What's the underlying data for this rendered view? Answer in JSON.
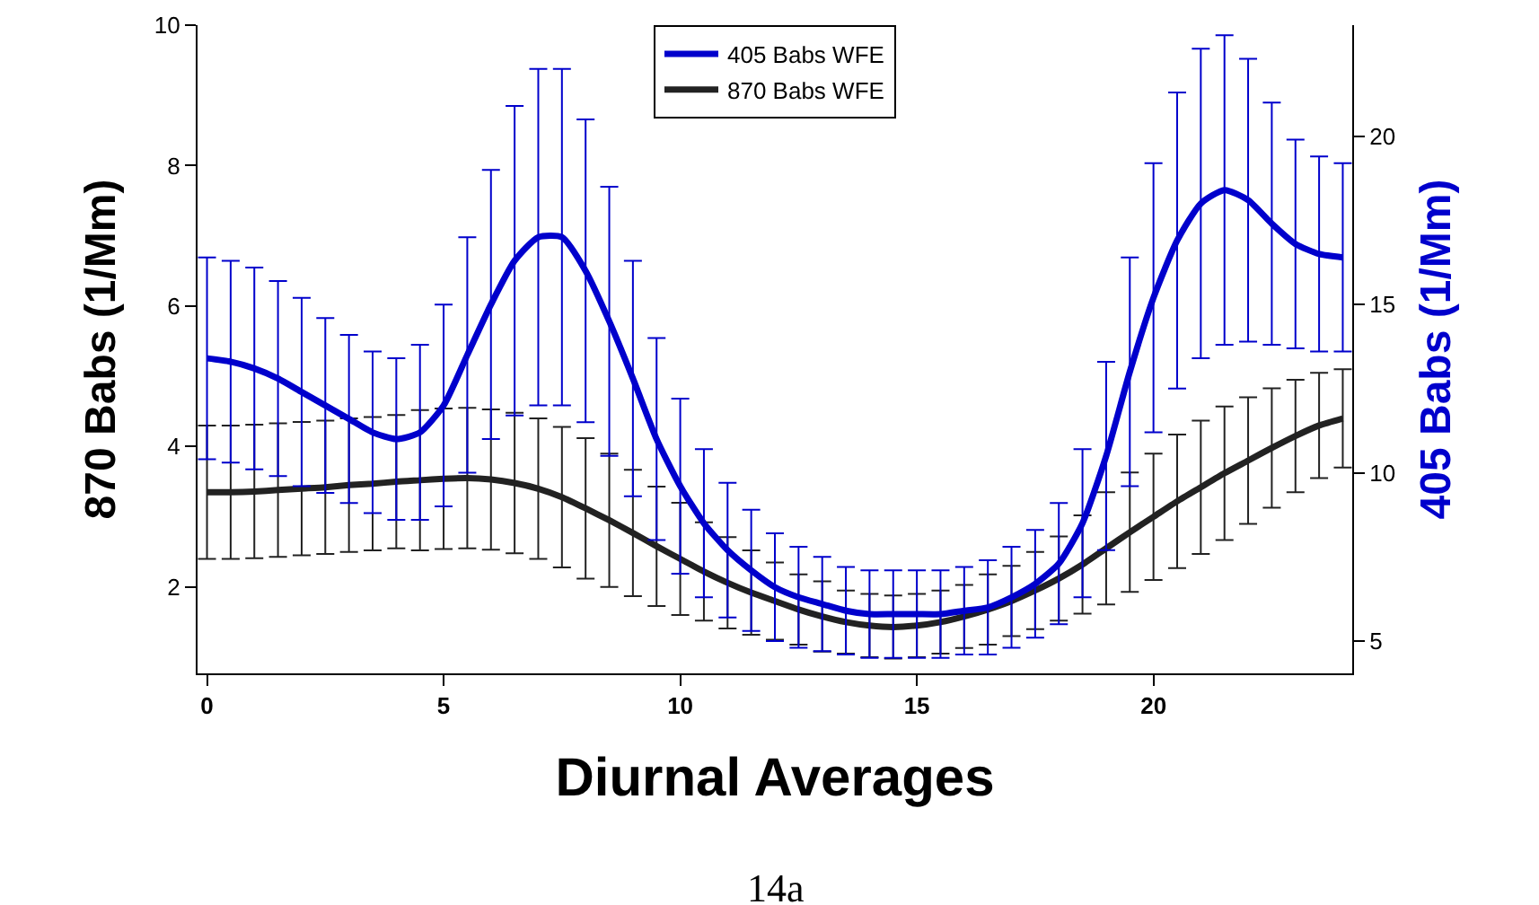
{
  "chart_data": {
    "type": "line",
    "xlabel": "Diurnal Averages",
    "ylabel": "870 Babs (1/Mm)",
    "y2label": "405 Babs (1/Mm)",
    "x": [
      0,
      0.5,
      1,
      1.5,
      2,
      2.5,
      3,
      3.5,
      4,
      4.5,
      5,
      5.5,
      6,
      6.5,
      7,
      7.5,
      8,
      8.5,
      9,
      9.5,
      10,
      10.5,
      11,
      11.5,
      12,
      12.5,
      13,
      13.5,
      14,
      14.5,
      15,
      15.5,
      16,
      16.5,
      17,
      17.5,
      18,
      18.5,
      19,
      19.5,
      20,
      20.5,
      21,
      21.5,
      22,
      22.5,
      23,
      23.5,
      24
    ],
    "series": [
      {
        "name": "405 Babs WFE",
        "color": "#0000cc",
        "axis": "y2",
        "values": [
          13.4,
          13.3,
          13.1,
          12.8,
          12.4,
          12.0,
          11.6,
          11.2,
          11.0,
          11.2,
          12.0,
          13.5,
          15.0,
          16.3,
          17.0,
          17.0,
          16.0,
          14.5,
          12.8,
          11.0,
          9.6,
          8.5,
          7.7,
          7.1,
          6.6,
          6.3,
          6.1,
          5.9,
          5.8,
          5.8,
          5.8,
          5.8,
          5.9,
          6.0,
          6.3,
          6.7,
          7.3,
          8.5,
          10.5,
          13.0,
          15.2,
          16.9,
          18.0,
          18.4,
          18.1,
          17.4,
          16.8,
          16.5,
          16.4
        ],
        "errors": [
          3,
          3,
          3,
          2.9,
          2.8,
          2.6,
          2.5,
          2.4,
          2.4,
          2.6,
          3,
          3.5,
          4,
          4.6,
          5,
          5,
          4.5,
          4,
          3.5,
          3,
          2.6,
          2.2,
          2,
          1.8,
          1.6,
          1.5,
          1.4,
          1.3,
          1.3,
          1.3,
          1.3,
          1.3,
          1.3,
          1.4,
          1.5,
          1.6,
          1.8,
          2.2,
          2.8,
          3.4,
          4,
          4.4,
          4.6,
          4.6,
          4.2,
          3.6,
          3.1,
          2.9,
          2.8
        ]
      },
      {
        "name": "870 Babs WFE",
        "color": "#222222",
        "values": [
          3.35,
          3.35,
          3.36,
          3.38,
          3.4,
          3.42,
          3.45,
          3.47,
          3.5,
          3.52,
          3.54,
          3.55,
          3.53,
          3.48,
          3.4,
          3.28,
          3.12,
          2.95,
          2.77,
          2.58,
          2.4,
          2.22,
          2.06,
          1.92,
          1.8,
          1.68,
          1.58,
          1.5,
          1.45,
          1.43,
          1.45,
          1.5,
          1.58,
          1.68,
          1.8,
          1.95,
          2.12,
          2.32,
          2.55,
          2.78,
          3.0,
          3.22,
          3.42,
          3.62,
          3.8,
          3.98,
          4.15,
          4.3,
          4.4
        ],
        "errors": [
          0.95,
          0.95,
          0.95,
          0.95,
          0.95,
          0.95,
          0.95,
          0.95,
          0.95,
          1,
          1,
          1,
          1,
          1,
          1,
          1,
          1,
          0.95,
          0.9,
          0.85,
          0.8,
          0.7,
          0.65,
          0.6,
          0.55,
          0.5,
          0.5,
          0.45,
          0.45,
          0.45,
          0.45,
          0.45,
          0.45,
          0.5,
          0.5,
          0.55,
          0.6,
          0.7,
          0.8,
          0.85,
          0.9,
          0.95,
          0.95,
          0.95,
          0.9,
          0.85,
          0.8,
          0.75,
          0.7
        ]
      }
    ],
    "xlim": [
      -0.2,
      24.2
    ],
    "xticks": [
      0,
      5,
      10,
      15,
      20
    ],
    "ylim": [
      0.77,
      10
    ],
    "yticks": [
      2,
      4,
      6,
      8,
      10
    ],
    "y2lim": [
      4.04,
      23.3
    ],
    "y2ticks": [
      5,
      10,
      15,
      20
    ],
    "grid": false,
    "legend": "top",
    "marker": "none",
    "line_style": "solid",
    "annotations": [
      "14a"
    ]
  }
}
